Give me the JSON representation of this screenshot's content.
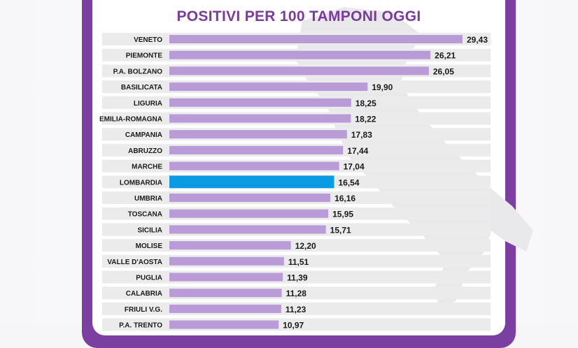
{
  "chart_data": {
    "type": "bar",
    "orientation": "horizontal",
    "title": "POSITIVI PER 100 TAMPONI OGGI",
    "categories": [
      "VENETO",
      "PIEMONTE",
      "P.A. BOLZANO",
      "BASILICATA",
      "LIGURIA",
      "EMILIA-ROMAGNA",
      "CAMPANIA",
      "ABRUZZO",
      "MARCHE",
      "LOMBARDIA",
      "UMBRIA",
      "TOSCANA",
      "SICILIA",
      "MOLISE",
      "VALLE D'AOSTA",
      "PUGLIA",
      "CALABRIA",
      "FRIULI V.G.",
      "P.A. TRENTO"
    ],
    "values": [
      29.43,
      26.21,
      26.05,
      19.9,
      18.25,
      18.22,
      17.83,
      17.44,
      17.04,
      16.54,
      16.16,
      15.95,
      15.71,
      12.2,
      11.51,
      11.39,
      11.28,
      11.23,
      10.97
    ],
    "value_labels": [
      "29,43",
      "26,21",
      "26,05",
      "19,90",
      "18,25",
      "18,22",
      "17,83",
      "17,44",
      "17,04",
      "16,54",
      "16,16",
      "15,95",
      "15,71",
      "12,20",
      "11,51",
      "11,39",
      "11,28",
      "11,23",
      "10,97"
    ],
    "highlight": "LOMBARDIA",
    "colors": {
      "bar": "#b99bd8",
      "highlight": "#0a9be2",
      "row_band": "#ebebeb",
      "title": "#7a3a9e",
      "frame": "#7b3fa2"
    },
    "xlim": [
      0,
      30
    ],
    "grid": false,
    "legend": "none"
  }
}
